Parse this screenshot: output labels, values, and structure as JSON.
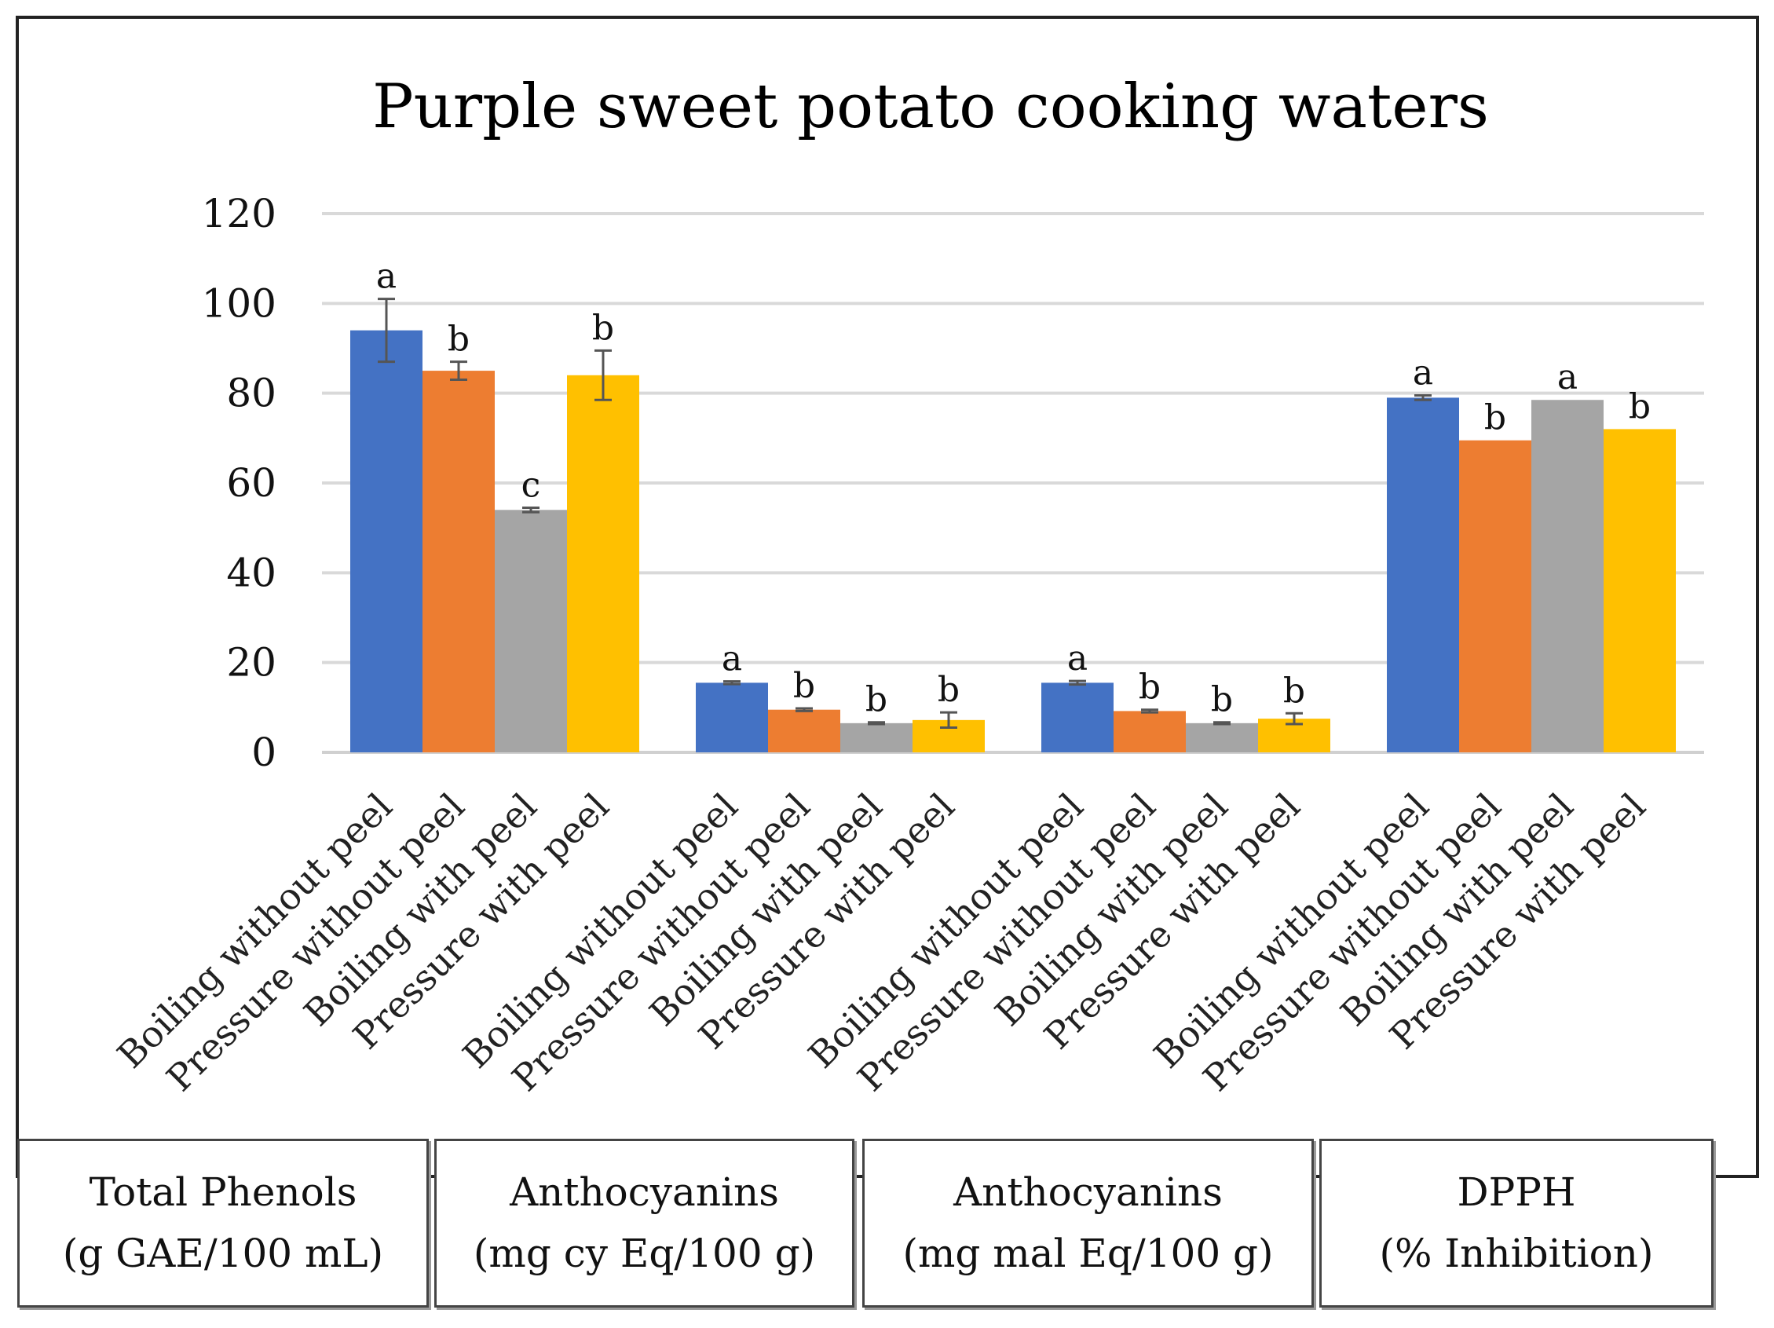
{
  "chart_data": {
    "type": "bar",
    "title": "Purple sweet potato cooking waters",
    "ylim": [
      0,
      120
    ],
    "yticks": [
      0,
      20,
      40,
      60,
      80,
      100,
      120
    ],
    "grid": true,
    "groups": [
      {
        "label_line1": "Total Phenols",
        "label_line2": "(g GAE/100 mL)",
        "categories": [
          "Boiling without peel",
          "Pressure without peel",
          "Boiling with peel",
          "Pressure with peel"
        ],
        "values": [
          94,
          85,
          54,
          84
        ],
        "errors": [
          7,
          2,
          0.5,
          5.5
        ],
        "letters": [
          "a",
          "b",
          "c",
          "b"
        ]
      },
      {
        "label_line1": "Anthocyanins",
        "label_line2": "(mg cy Eq/100 g)",
        "categories": [
          "Boiling without peel",
          "Pressure without peel",
          "Boiling with peel",
          "Pressure with peel"
        ],
        "values": [
          15.5,
          9.5,
          6.5,
          7.2
        ],
        "errors": [
          0.3,
          0.3,
          0.2,
          1.7
        ],
        "letters": [
          "a",
          "b",
          "b",
          "b"
        ]
      },
      {
        "label_line1": "Anthocyanins",
        "label_line2": "(mg mal Eq/100 g)",
        "categories": [
          "Boiling without peel",
          "Pressure without peel",
          "Boiling with peel",
          "Pressure with peel"
        ],
        "values": [
          15.5,
          9.2,
          6.5,
          7.5
        ],
        "errors": [
          0.4,
          0.3,
          0.2,
          1.2
        ],
        "letters": [
          "a",
          "b",
          "b",
          "b"
        ]
      },
      {
        "label_line1": "DPPH",
        "label_line2": "(% Inhibition)",
        "categories": [
          "Boiling without peel",
          "Pressure without peel",
          "Boiling with peel",
          "Pressure with peel"
        ],
        "values": [
          79,
          69.5,
          78.5,
          72
        ],
        "errors": [
          0.5,
          0,
          0,
          0
        ],
        "letters": [
          "a",
          "b",
          "a",
          "b"
        ]
      }
    ],
    "series_colors": [
      "#4472C4",
      "#ED7D31",
      "#A5A5A5",
      "#FFC000"
    ]
  }
}
